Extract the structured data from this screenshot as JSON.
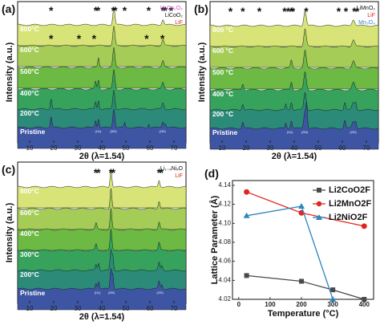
{
  "panels": [
    {
      "id": "a",
      "label": "(a)",
      "xlabel": "2θ (λ=1.54)",
      "ylabel": "Intensity (a.u.)",
      "x_ticks": [
        "10",
        "20",
        "30",
        "40",
        "50",
        "60",
        "70"
      ],
      "legend": [
        {
          "text": "Li₂Co₂O₄",
          "color": "#d24fd2"
        },
        {
          "text": "LiCoO₂",
          "color": "#111111"
        },
        {
          "text": "LiF",
          "color": "#e0261f"
        }
      ],
      "traces": [
        {
          "label": "800°C",
          "color": "#d8e477"
        },
        {
          "label": "600°C",
          "color": "#a6cc58"
        },
        {
          "label": "500°C",
          "color": "#6cb944"
        },
        {
          "label": "400°C",
          "color": "#36a25c"
        },
        {
          "label": "200°C",
          "color": "#2b8a78"
        },
        {
          "label": "Pristine",
          "color": "#3d55a3"
        }
      ],
      "hkl": [
        "(111)",
        "(200)",
        "(220)"
      ]
    },
    {
      "id": "b",
      "label": "(b)",
      "xlabel": "2θ (λ=1.54)",
      "ylabel": "Intensity (a.u.)",
      "x_ticks": [
        "10",
        "20",
        "30",
        "40",
        "50",
        "60",
        "70"
      ],
      "legend": [
        {
          "text": "LiMnO₂",
          "color": "#111111"
        },
        {
          "text": "LiF",
          "color": "#e0261f"
        },
        {
          "text": "Mn₃O₄",
          "color": "#2e86c1"
        }
      ],
      "traces": [
        {
          "label": "800 °C",
          "color": "#d8e477"
        },
        {
          "label": "600 °C",
          "color": "#a6cc58"
        },
        {
          "label": "500 °C",
          "color": "#6cb944"
        },
        {
          "label": "400 °C",
          "color": "#36a25c"
        },
        {
          "label": "200 °C",
          "color": "#2b8a78"
        },
        {
          "label": "Pristine",
          "color": "#3d55a3"
        }
      ],
      "hkl": [
        "(111)",
        "(200)",
        "(220)"
      ]
    },
    {
      "id": "c",
      "label": "(c)",
      "xlabel": "2θ (λ=1.54)",
      "ylabel": "Intensity (a.u.)",
      "x_ticks": [
        "10",
        "20",
        "30",
        "40",
        "50",
        "60",
        "70"
      ],
      "legend": [
        {
          "text": "Li₁₋ₓNiₓO",
          "color": "#111111"
        },
        {
          "text": "LiF",
          "color": "#e0261f"
        }
      ],
      "traces": [
        {
          "label": "800°C",
          "color": "#d8e477"
        },
        {
          "label": "600°C",
          "color": "#a6cc58"
        },
        {
          "label": "400°C",
          "color": "#6cb944"
        },
        {
          "label": "300°C",
          "color": "#36a25c"
        },
        {
          "label": "200°C",
          "color": "#2b8a78"
        },
        {
          "label": "Pristine",
          "color": "#3d55a3"
        }
      ],
      "hkl": [
        "(111)",
        "(200)",
        "(220)"
      ]
    }
  ],
  "chart_data": {
    "type": "line",
    "panel_label": "(d)",
    "xlabel": "Temperature (°C)",
    "ylabel": "Lattice Parameter (Å)",
    "xlim": [
      -20,
      430
    ],
    "ylim": [
      4.02,
      4.145
    ],
    "x_ticks": [
      0,
      100,
      200,
      300,
      400
    ],
    "y_ticks": [
      4.02,
      4.04,
      4.06,
      4.08,
      4.1,
      4.12,
      4.14
    ],
    "y_tick_labels": [
      "4.02",
      "4.04",
      "4.06",
      "4.08",
      "4.10",
      "4.12",
      "4.14"
    ],
    "legend_position": "top-right",
    "series": [
      {
        "name": "Li2CoO2F",
        "color": "#4a4a4a",
        "marker": "square",
        "x": [
          25,
          200,
          300,
          400
        ],
        "y": [
          4.045,
          4.039,
          4.03,
          4.02
        ]
      },
      {
        "name": "Li2MnO2F",
        "color": "#e0261f",
        "marker": "circle",
        "x": [
          25,
          200,
          400
        ],
        "y": [
          4.133,
          4.111,
          4.097
        ]
      },
      {
        "name": "Li2NiO2F",
        "color": "#2e86c1",
        "marker": "triangle",
        "x": [
          25,
          200,
          300
        ],
        "y": [
          4.108,
          4.118,
          4.02
        ]
      }
    ]
  }
}
